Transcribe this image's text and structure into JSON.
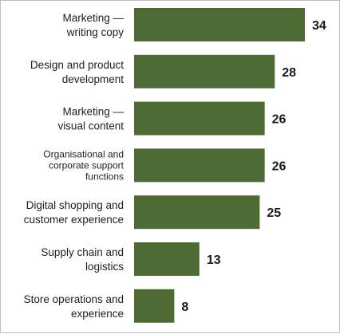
{
  "chart_data": {
    "type": "bar",
    "orientation": "horizontal",
    "categories": [
      "Marketing — writing copy",
      "Design and product development",
      "Marketing — visual content",
      "Organisational and corporate support functions",
      "Digital shopping and customer experience",
      "Supply chain and logistics",
      "Store operations and experience"
    ],
    "category_label_lines": [
      [
        "Marketing —",
        "writing copy"
      ],
      [
        "Design and product",
        "development"
      ],
      [
        "Marketing —",
        "visual content"
      ],
      [
        "Organisational and",
        "corporate support",
        "functions"
      ],
      [
        "Digital shopping and",
        "customer experience"
      ],
      [
        "Supply chain and",
        "logistics"
      ],
      [
        "Store operations and",
        "experience"
      ]
    ],
    "values": [
      34,
      28,
      26,
      26,
      25,
      13,
      8
    ],
    "bar_color": "#4f6b35",
    "xlim": [
      0,
      34
    ],
    "grid": false,
    "legend": "none"
  }
}
